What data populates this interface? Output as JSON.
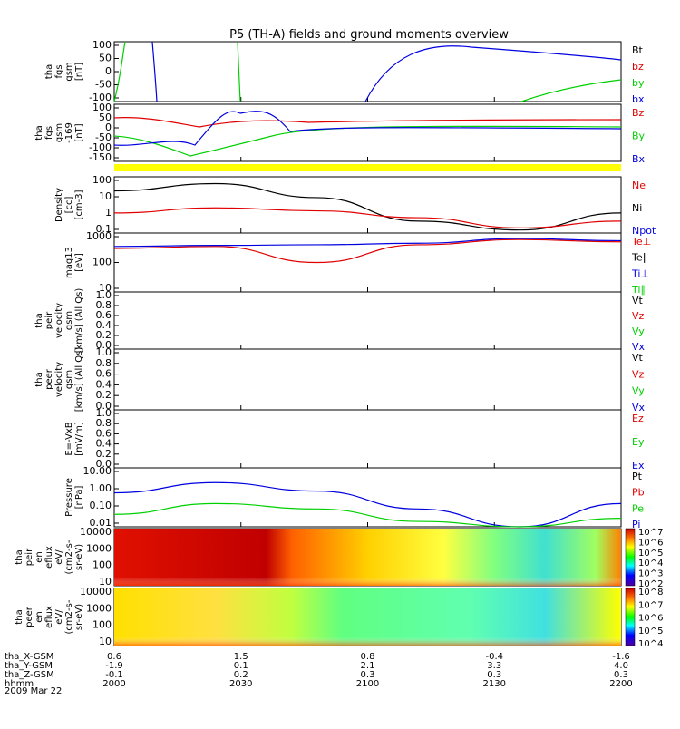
{
  "title": "P5 (TH-A) fields and ground moments overview",
  "colors": {
    "black": "#000000",
    "red": "#e00000",
    "green": "#00d000",
    "blue": "#0000e0",
    "yellow": "#ffff00"
  },
  "panels": [
    {
      "id": "fgs",
      "ylabel": [
        "tha",
        "fgs",
        "gsm",
        "[nT]"
      ],
      "ticks": [
        "100",
        "50",
        "0",
        "-50",
        "-100"
      ],
      "legend": [
        {
          "text": "Bt",
          "color": "black"
        },
        {
          "text": "bz",
          "color": "red"
        },
        {
          "text": "by",
          "color": "green"
        },
        {
          "text": "bx",
          "color": "blue"
        }
      ]
    },
    {
      "id": "fgs_gsm",
      "ylabel": [
        "tha",
        "fgs",
        "gsm",
        "-169",
        "[nT]"
      ],
      "ticks": [
        "100",
        "50",
        "0",
        "-50",
        "-100",
        "-150"
      ],
      "legend": [
        {
          "text": "Bz",
          "color": "red"
        },
        {
          "text": "By",
          "color": "green"
        },
        {
          "text": "Bx",
          "color": "blue"
        }
      ]
    },
    {
      "id": "density",
      "ylabel": [
        "Density",
        "[cc]",
        "[cm-3]"
      ],
      "ticks": [
        "100",
        "10",
        "1",
        "0.1"
      ],
      "legend": [
        {
          "text": "Ne",
          "color": "red"
        },
        {
          "text": "Ni",
          "color": "black"
        },
        {
          "text": "Npot",
          "color": "blue"
        }
      ]
    },
    {
      "id": "temp",
      "ylabel": [
        "mag13",
        "[eV]"
      ],
      "ticks": [
        "1000",
        "100",
        "10"
      ],
      "legend": [
        {
          "text": "Te⊥",
          "color": "red"
        },
        {
          "text": "Te∥",
          "color": "black"
        },
        {
          "text": "Ti⊥",
          "color": "blue"
        },
        {
          "text": "Ti∥",
          "color": "green"
        }
      ]
    },
    {
      "id": "peir_vel",
      "ylabel": [
        "tha",
        "peir",
        "velocity",
        "gsm",
        "[km/s] (All Qs)"
      ],
      "ticks": [
        "1.0",
        "0.8",
        "0.6",
        "0.4",
        "0.2",
        "0.0"
      ],
      "legend": [
        {
          "text": "Vt",
          "color": "black"
        },
        {
          "text": "Vz",
          "color": "red"
        },
        {
          "text": "Vy",
          "color": "green"
        },
        {
          "text": "Vx",
          "color": "blue"
        }
      ]
    },
    {
      "id": "peer_vel",
      "ylabel": [
        "tha",
        "peer",
        "velocity",
        "gsm",
        "[km/s] (All Qs)"
      ],
      "ticks": [
        "1.0",
        "0.8",
        "0.6",
        "0.4",
        "0.2",
        "0.0"
      ],
      "legend": [
        {
          "text": "Vt",
          "color": "black"
        },
        {
          "text": "Vz",
          "color": "red"
        },
        {
          "text": "Vy",
          "color": "green"
        },
        {
          "text": "Vx",
          "color": "blue"
        }
      ]
    },
    {
      "id": "efield",
      "ylabel": [
        "E=-VxB",
        "[mV/m]"
      ],
      "ticks": [
        "1.0",
        "0.8",
        "0.6",
        "0.4",
        "0.2",
        "0.0"
      ],
      "legend": [
        {
          "text": "Ez",
          "color": "red"
        },
        {
          "text": "Ey",
          "color": "green"
        },
        {
          "text": "Ex",
          "color": "blue"
        }
      ]
    },
    {
      "id": "pressure",
      "ylabel": [
        "Pressure",
        "[nPa]"
      ],
      "ticks": [
        "10.00",
        "1.00",
        "0.10",
        "0.01"
      ],
      "legend": [
        {
          "text": "Pt",
          "color": "black"
        },
        {
          "text": "Pb",
          "color": "red"
        },
        {
          "text": "Pe",
          "color": "green"
        },
        {
          "text": "Pi",
          "color": "blue"
        }
      ]
    },
    {
      "id": "peir_spec",
      "ylabel": [
        "tha",
        "peir",
        "en",
        "eflux",
        "eV/",
        "(cm2-s-",
        "sr-eV)"
      ],
      "ticks": [
        "10000",
        "1000",
        "100",
        "10"
      ],
      "colorbar": [
        "10^7",
        "10^6",
        "10^5",
        "10^4",
        "10^3",
        "10^2"
      ]
    },
    {
      "id": "peer_spec",
      "ylabel": [
        "tha",
        "peer",
        "en",
        "eflux",
        "eV/",
        "(cm2-s-",
        "sr-eV)"
      ],
      "ticks": [
        "10000",
        "1000",
        "100",
        "10"
      ],
      "colorbar": [
        "10^8",
        "10^7",
        "10^6",
        "10^5",
        "10^4"
      ]
    }
  ],
  "xaxis": {
    "rows": [
      {
        "label": "tha_X-GSM",
        "values": [
          "0.6",
          "1.5",
          "0.8",
          "-0.4",
          "-1.6"
        ]
      },
      {
        "label": "tha_Y-GSM",
        "values": [
          "-1.9",
          "0.1",
          "2.1",
          "3.3",
          "4.0"
        ]
      },
      {
        "label": "tha_Z-GSM",
        "values": [
          "-0.1",
          "0.2",
          "0.3",
          "0.3",
          "0.3"
        ]
      },
      {
        "label": "hhmm",
        "values": [
          "2000",
          "2030",
          "2100",
          "2130",
          "2200"
        ]
      }
    ],
    "date": "2009 Mar 22"
  },
  "chart_data": {
    "type": "line",
    "title": "P5 (TH-A) fields and ground moments overview",
    "x": [
      "2000",
      "2030",
      "2100",
      "2130",
      "2200"
    ],
    "xlabel": "hhmm",
    "date": "2009 Mar 22",
    "density": {
      "ylim": [
        0.1,
        200
      ],
      "log": true,
      "series": [
        {
          "name": "Ni",
          "values": [
            30,
            80,
            12,
            0.5,
            0.15,
            1.5
          ]
        },
        {
          "name": "Ne",
          "values": [
            1.5,
            3,
            2,
            0.8,
            0.2,
            0.5
          ]
        }
      ]
    },
    "temperature": {
      "ylim": [
        10,
        1000
      ],
      "log": true,
      "series": [
        {
          "name": "Te⊥",
          "values": [
            300,
            350,
            100,
            400,
            600,
            500
          ]
        },
        {
          "name": "Ti⊥",
          "values": [
            350,
            380,
            400,
            450,
            650,
            550
          ]
        }
      ]
    },
    "pressure": {
      "ylim": [
        0.01,
        20
      ],
      "log": true,
      "series": [
        {
          "name": "Pi",
          "values": [
            0.8,
            3,
            1,
            0.1,
            0.01,
            0.2
          ]
        },
        {
          "name": "Pe",
          "values": [
            0.05,
            0.2,
            0.1,
            0.02,
            0.01,
            0.03
          ]
        }
      ]
    }
  }
}
